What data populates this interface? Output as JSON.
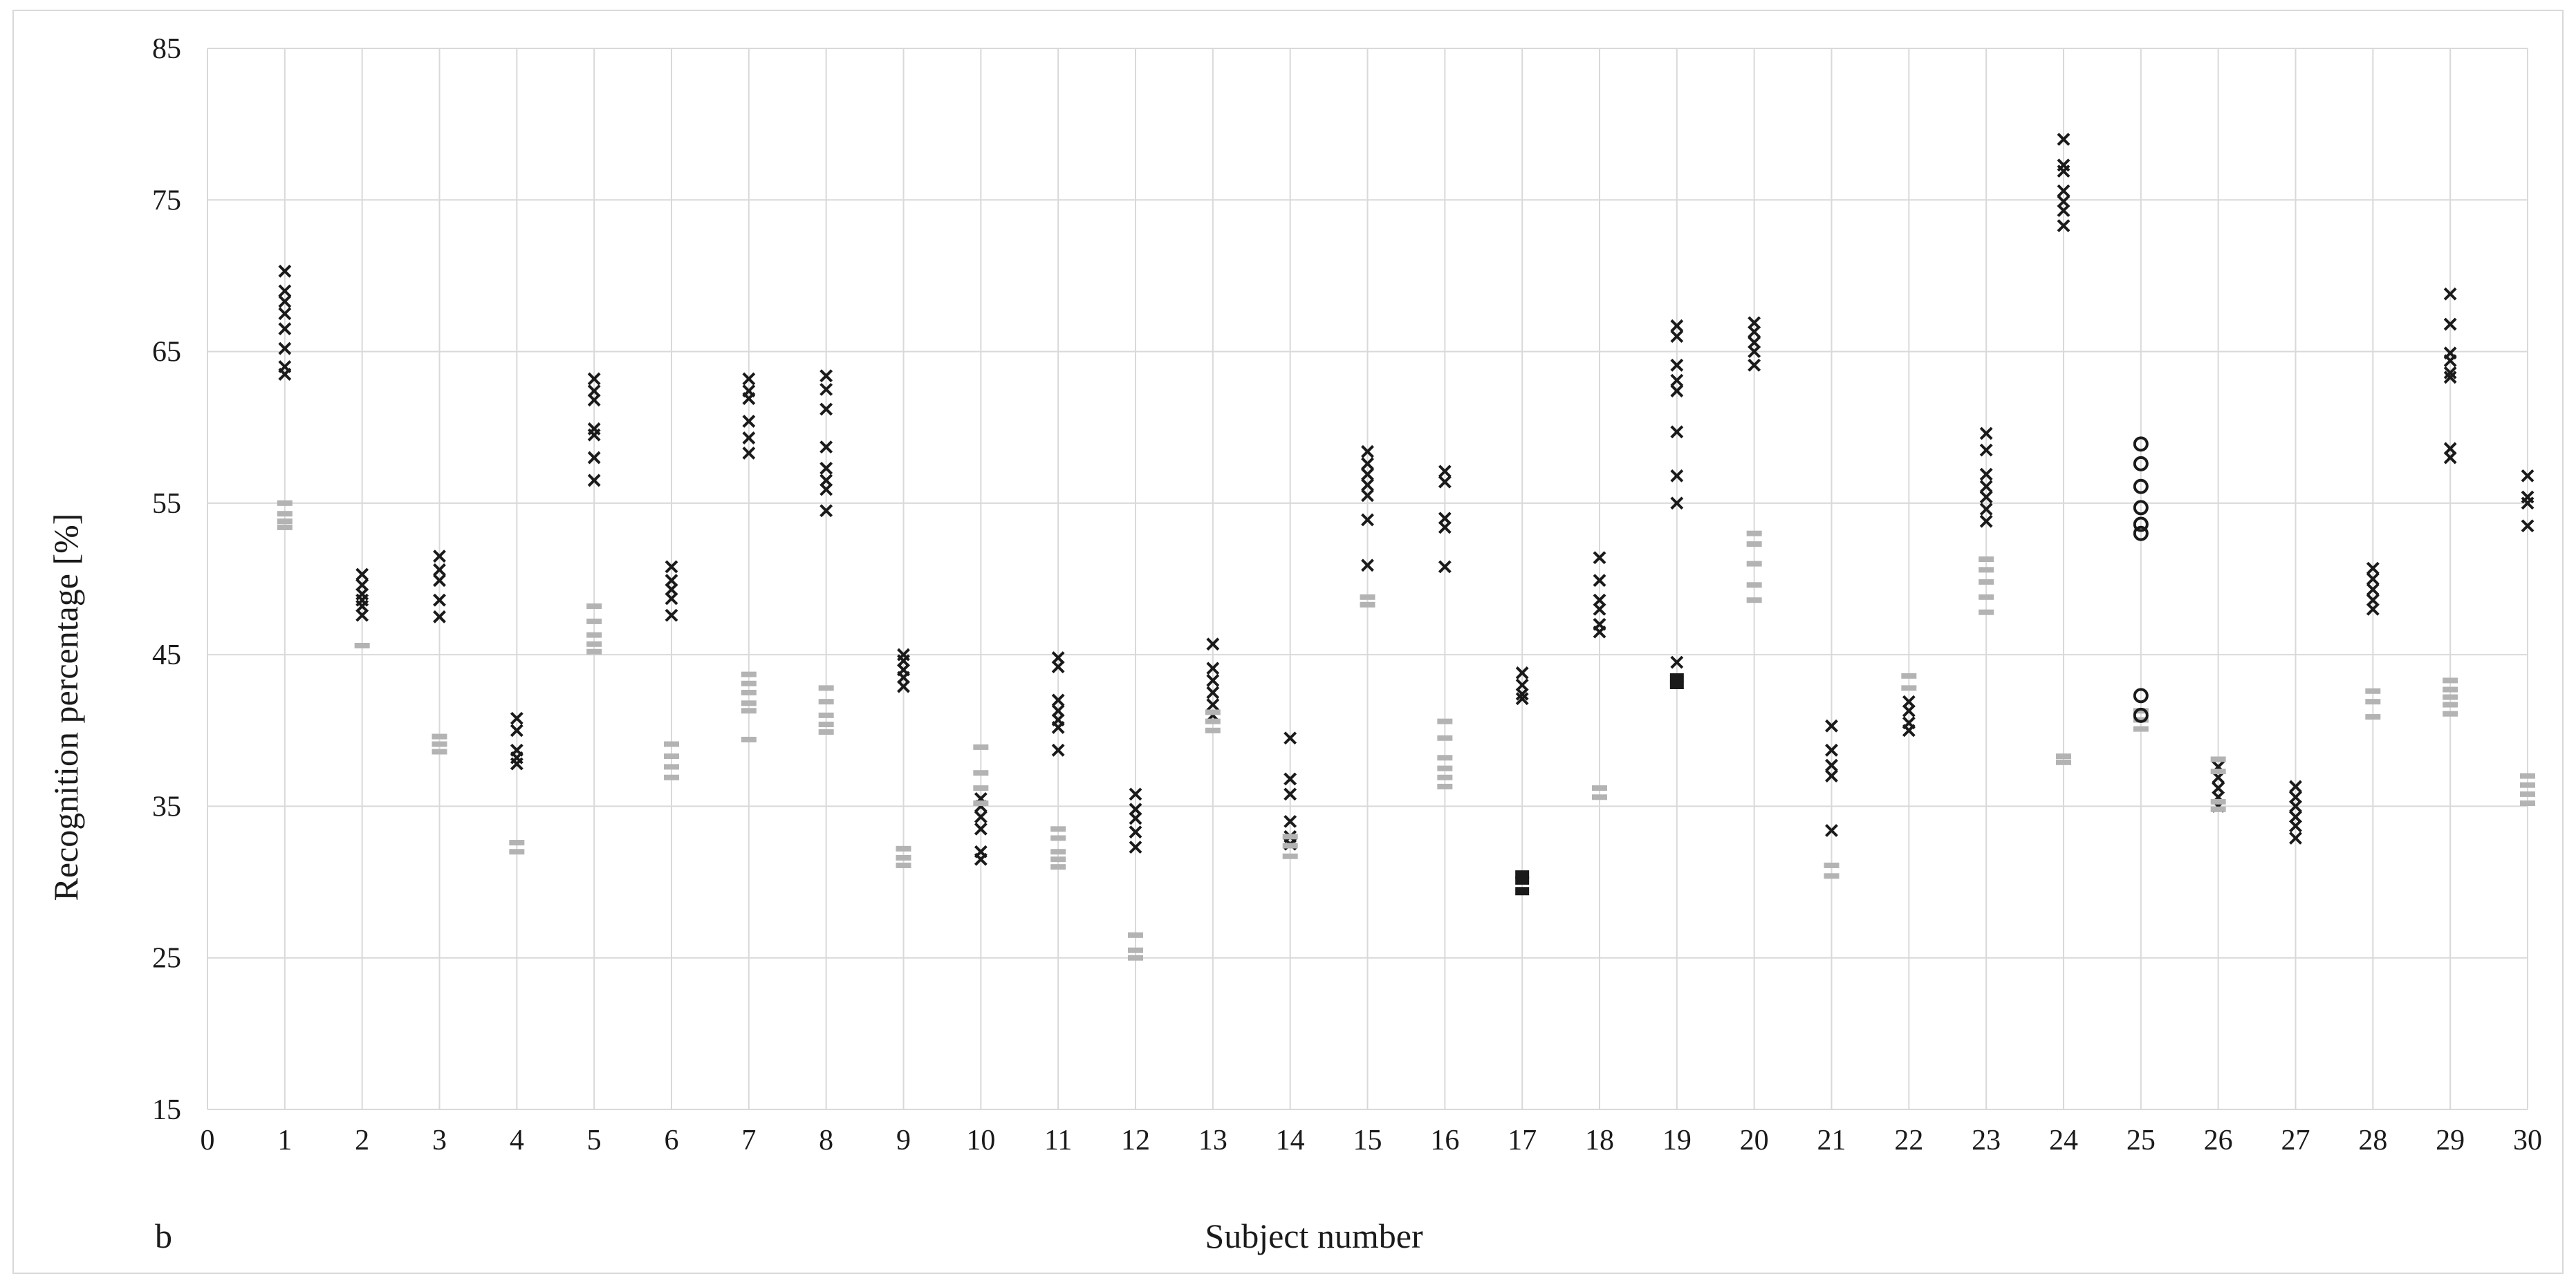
{
  "panel_letter": "b",
  "chart_data": {
    "type": "scatter",
    "title": "",
    "xlabel": "Subject number",
    "ylabel": "Recognition percentage [%]",
    "xlim": [
      0,
      30
    ],
    "ylim": [
      15,
      85
    ],
    "x_ticks": [
      "0",
      "1",
      "2",
      "3",
      "4",
      "5",
      "6",
      "7",
      "8",
      "9",
      "10",
      "11",
      "12",
      "13",
      "14",
      "15",
      "16",
      "17",
      "18",
      "19",
      "20",
      "21",
      "22",
      "23",
      "24",
      "25",
      "26",
      "27",
      "28",
      "29",
      "30"
    ],
    "y_ticks": [
      "15",
      "25",
      "35",
      "45",
      "55",
      "65",
      "75",
      "85"
    ],
    "grid": "vertical and horizontal",
    "colors": {
      "cross": "#1a1a1a",
      "gray_dash": "#b3b3b3",
      "black_square": "#1a1a1a",
      "circle": "#1a1a1a"
    },
    "series": [
      {
        "marker": "cross",
        "points": [
          [
            1,
            70.3
          ],
          [
            1,
            69.0
          ],
          [
            1,
            68.3
          ],
          [
            1,
            67.5
          ],
          [
            1,
            66.5
          ],
          [
            1,
            65.2
          ],
          [
            1,
            64.0
          ],
          [
            1,
            63.5
          ],
          [
            2,
            50.3
          ],
          [
            2,
            49.6
          ],
          [
            2,
            49.0
          ],
          [
            2,
            48.6
          ],
          [
            2,
            48.2
          ],
          [
            2,
            47.6
          ],
          [
            3,
            51.5
          ],
          [
            3,
            50.6
          ],
          [
            3,
            49.9
          ],
          [
            3,
            48.6
          ],
          [
            3,
            47.5
          ],
          [
            4,
            40.8
          ],
          [
            4,
            40.0
          ],
          [
            4,
            38.7
          ],
          [
            4,
            38.2
          ],
          [
            4,
            37.8
          ],
          [
            5,
            63.2
          ],
          [
            5,
            62.4
          ],
          [
            5,
            61.8
          ],
          [
            5,
            59.9
          ],
          [
            5,
            59.5
          ],
          [
            5,
            58.0
          ],
          [
            5,
            56.5
          ],
          [
            6,
            50.8
          ],
          [
            6,
            49.9
          ],
          [
            6,
            49.3
          ],
          [
            6,
            48.7
          ],
          [
            6,
            47.6
          ],
          [
            7,
            63.2
          ],
          [
            7,
            62.4
          ],
          [
            7,
            61.9
          ],
          [
            7,
            60.4
          ],
          [
            7,
            59.3
          ],
          [
            7,
            58.3
          ],
          [
            8,
            63.4
          ],
          [
            8,
            62.5
          ],
          [
            8,
            61.2
          ],
          [
            8,
            58.7
          ],
          [
            8,
            57.3
          ],
          [
            8,
            56.5
          ],
          [
            8,
            55.9
          ],
          [
            8,
            54.5
          ],
          [
            9,
            45.0
          ],
          [
            9,
            44.6
          ],
          [
            9,
            44.0
          ],
          [
            9,
            43.5
          ],
          [
            9,
            42.9
          ],
          [
            10,
            35.5
          ],
          [
            10,
            35.0
          ],
          [
            10,
            34.3
          ],
          [
            10,
            33.5
          ],
          [
            10,
            32.0
          ],
          [
            10,
            31.5
          ],
          [
            11,
            44.8
          ],
          [
            11,
            44.2
          ],
          [
            11,
            42.0
          ],
          [
            11,
            41.3
          ],
          [
            11,
            40.7
          ],
          [
            11,
            40.2
          ],
          [
            11,
            38.7
          ],
          [
            12,
            35.8
          ],
          [
            12,
            34.8
          ],
          [
            12,
            34.2
          ],
          [
            12,
            33.3
          ],
          [
            12,
            32.3
          ],
          [
            13,
            45.7
          ],
          [
            13,
            44.1
          ],
          [
            13,
            43.3
          ],
          [
            13,
            42.5
          ],
          [
            13,
            41.7
          ],
          [
            13,
            41.0
          ],
          [
            14,
            39.5
          ],
          [
            14,
            36.8
          ],
          [
            14,
            35.8
          ],
          [
            14,
            34.0
          ],
          [
            14,
            33.0
          ],
          [
            14,
            32.5
          ],
          [
            15,
            58.4
          ],
          [
            15,
            57.6
          ],
          [
            15,
            56.9
          ],
          [
            15,
            56.2
          ],
          [
            15,
            55.5
          ],
          [
            15,
            53.9
          ],
          [
            15,
            50.9
          ],
          [
            16,
            57.1
          ],
          [
            16,
            56.4
          ],
          [
            16,
            54.0
          ],
          [
            16,
            53.4
          ],
          [
            16,
            50.8
          ],
          [
            17,
            43.8
          ],
          [
            17,
            43.0
          ],
          [
            17,
            42.4
          ],
          [
            17,
            42.1
          ],
          [
            18,
            51.4
          ],
          [
            18,
            49.9
          ],
          [
            18,
            48.6
          ],
          [
            18,
            48.0
          ],
          [
            18,
            47.0
          ],
          [
            18,
            46.5
          ],
          [
            19,
            66.7
          ],
          [
            19,
            66.0
          ],
          [
            19,
            64.1
          ],
          [
            19,
            63.1
          ],
          [
            19,
            62.4
          ],
          [
            19,
            59.7
          ],
          [
            19,
            56.8
          ],
          [
            19,
            55.0
          ],
          [
            19,
            44.5
          ],
          [
            20,
            66.9
          ],
          [
            20,
            66.3
          ],
          [
            20,
            65.6
          ],
          [
            20,
            65.0
          ],
          [
            20,
            64.1
          ],
          [
            21,
            40.3
          ],
          [
            21,
            38.7
          ],
          [
            21,
            37.7
          ],
          [
            21,
            37.0
          ],
          [
            21,
            33.4
          ],
          [
            22,
            41.9
          ],
          [
            22,
            41.3
          ],
          [
            22,
            40.5
          ],
          [
            22,
            40.0
          ],
          [
            23,
            59.6
          ],
          [
            23,
            58.5
          ],
          [
            23,
            56.9
          ],
          [
            23,
            56.1
          ],
          [
            23,
            55.4
          ],
          [
            23,
            54.6
          ],
          [
            23,
            53.8
          ],
          [
            24,
            79.0
          ],
          [
            24,
            77.3
          ],
          [
            24,
            76.9
          ],
          [
            24,
            75.6
          ],
          [
            24,
            74.9
          ],
          [
            24,
            74.3
          ],
          [
            24,
            73.3
          ],
          [
            26,
            37.6
          ],
          [
            26,
            36.9
          ],
          [
            26,
            36.2
          ],
          [
            26,
            35.6
          ],
          [
            26,
            35.0
          ],
          [
            27,
            36.3
          ],
          [
            27,
            35.6
          ],
          [
            27,
            35.0
          ],
          [
            27,
            34.3
          ],
          [
            27,
            33.7
          ],
          [
            27,
            32.9
          ],
          [
            28,
            50.7
          ],
          [
            28,
            50.0
          ],
          [
            28,
            49.3
          ],
          [
            28,
            48.6
          ],
          [
            28,
            48.0
          ],
          [
            29,
            68.8
          ],
          [
            29,
            66.8
          ],
          [
            29,
            64.9
          ],
          [
            29,
            64.4
          ],
          [
            29,
            63.6
          ],
          [
            29,
            63.3
          ],
          [
            29,
            58.6
          ],
          [
            29,
            58.0
          ],
          [
            30,
            56.8
          ],
          [
            30,
            55.4
          ],
          [
            30,
            55.0
          ],
          [
            30,
            53.5
          ]
        ]
      },
      {
        "marker": "gray-dash",
        "points": [
          [
            1,
            55.0
          ],
          [
            1,
            54.3
          ],
          [
            1,
            53.8
          ],
          [
            1,
            53.4
          ],
          [
            2,
            45.6
          ],
          [
            3,
            39.6
          ],
          [
            3,
            39.1
          ],
          [
            3,
            38.6
          ],
          [
            4,
            32.6
          ],
          [
            4,
            32.0
          ],
          [
            5,
            48.2
          ],
          [
            5,
            47.2
          ],
          [
            5,
            46.3
          ],
          [
            5,
            45.7
          ],
          [
            5,
            45.2
          ],
          [
            6,
            39.1
          ],
          [
            6,
            38.3
          ],
          [
            6,
            37.6
          ],
          [
            6,
            36.9
          ],
          [
            7,
            43.7
          ],
          [
            7,
            43.1
          ],
          [
            7,
            42.5
          ],
          [
            7,
            41.8
          ],
          [
            7,
            41.3
          ],
          [
            7,
            39.4
          ],
          [
            8,
            42.8
          ],
          [
            8,
            41.9
          ],
          [
            8,
            41.0
          ],
          [
            8,
            40.4
          ],
          [
            8,
            39.9
          ],
          [
            9,
            32.2
          ],
          [
            9,
            31.6
          ],
          [
            9,
            31.1
          ],
          [
            10,
            38.9
          ],
          [
            10,
            37.2
          ],
          [
            10,
            36.2
          ],
          [
            10,
            35.2
          ],
          [
            11,
            33.5
          ],
          [
            11,
            32.9
          ],
          [
            11,
            32.0
          ],
          [
            11,
            31.5
          ],
          [
            11,
            31.0
          ],
          [
            12,
            26.5
          ],
          [
            12,
            25.5
          ],
          [
            12,
            25.0
          ],
          [
            13,
            41.2
          ],
          [
            13,
            40.6
          ],
          [
            13,
            40.0
          ],
          [
            14,
            33.0
          ],
          [
            14,
            32.4
          ],
          [
            14,
            31.7
          ],
          [
            15,
            48.8
          ],
          [
            15,
            48.3
          ],
          [
            16,
            40.6
          ],
          [
            16,
            39.5
          ],
          [
            16,
            38.2
          ],
          [
            16,
            37.5
          ],
          [
            16,
            36.9
          ],
          [
            16,
            36.3
          ],
          [
            18,
            36.2
          ],
          [
            18,
            35.6
          ],
          [
            20,
            53.0
          ],
          [
            20,
            52.3
          ],
          [
            20,
            51.0
          ],
          [
            20,
            49.6
          ],
          [
            20,
            48.6
          ],
          [
            21,
            31.1
          ],
          [
            21,
            30.4
          ],
          [
            22,
            43.6
          ],
          [
            22,
            42.8
          ],
          [
            23,
            51.3
          ],
          [
            23,
            50.6
          ],
          [
            23,
            49.8
          ],
          [
            23,
            48.8
          ],
          [
            23,
            47.8
          ],
          [
            24,
            38.3
          ],
          [
            24,
            37.9
          ],
          [
            25,
            41.3
          ],
          [
            25,
            40.7
          ],
          [
            25,
            40.1
          ],
          [
            26,
            38.1
          ],
          [
            26,
            37.3
          ],
          [
            26,
            35.3
          ],
          [
            26,
            34.8
          ],
          [
            28,
            42.6
          ],
          [
            28,
            41.9
          ],
          [
            28,
            40.9
          ],
          [
            29,
            43.3
          ],
          [
            29,
            42.7
          ],
          [
            29,
            42.2
          ],
          [
            29,
            41.7
          ],
          [
            29,
            41.1
          ],
          [
            30,
            37.0
          ],
          [
            30,
            36.4
          ],
          [
            30,
            35.8
          ],
          [
            30,
            35.2
          ]
        ]
      },
      {
        "marker": "black-square",
        "points": [
          [
            17,
            30.5
          ],
          [
            17,
            30.1
          ],
          [
            17,
            29.4
          ],
          [
            19,
            43.5
          ],
          [
            19,
            43.0
          ]
        ]
      },
      {
        "marker": "circle",
        "points": [
          [
            25,
            58.9
          ],
          [
            25,
            57.6
          ],
          [
            25,
            56.1
          ],
          [
            25,
            54.7
          ],
          [
            25,
            53.6
          ],
          [
            25,
            53.0
          ],
          [
            25,
            42.3
          ],
          [
            25,
            41.0
          ]
        ]
      }
    ]
  }
}
